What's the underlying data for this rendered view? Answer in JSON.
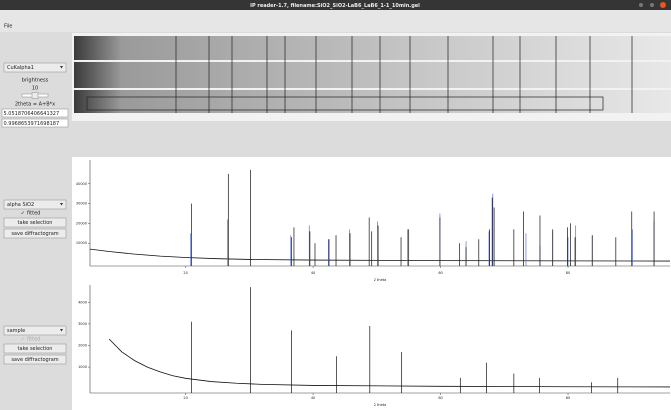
{
  "window": {
    "title": "IP reader-1.7, filename:SiO2_SiO2-LaB6_LaB6_1-1_10min.gel"
  },
  "menu": [
    "File"
  ],
  "image_panel": {
    "source": "CuKalpha1",
    "brightness_label": "brightness",
    "brightness": 10,
    "formula": "2theta = A+B*x",
    "param_a": "5.0518706406641327",
    "param_b": "0.9968653971698187"
  },
  "controls": [
    {
      "selector": "alpha SiO2",
      "check_label": "fitted",
      "checked": true,
      "enabled": true,
      "buttons": [
        "take selection",
        "save diffractogram"
      ]
    },
    {
      "selector": "sample",
      "check_label": "fitted",
      "checked": true,
      "enabled": false,
      "buttons": [
        "take selection",
        "save diffractogram"
      ]
    }
  ],
  "chart_data": [
    {
      "type": "line",
      "xlabel": "2 theta",
      "xlim": [
        5,
        96
      ],
      "ylim": [
        -1500,
        52000
      ],
      "xticks": [
        20,
        40,
        60,
        80
      ],
      "yticks": [
        10000,
        20000,
        30000,
        40000
      ],
      "series": [
        {
          "style": "line",
          "color": "#111111",
          "x": [
            5,
            8,
            12,
            16,
            20,
            25,
            30,
            40,
            60,
            80,
            96
          ],
          "values": [
            7000,
            5800,
            4500,
            3500,
            2800,
            2200,
            1800,
            1500,
            1200,
            1100,
            1000
          ]
        },
        {
          "style": "spikes",
          "color": "#5b6fd0",
          "x": [
            20.8,
            26.6,
            36.5,
            39.4,
            42.4,
            45.7,
            50.1,
            54.8,
            59.9,
            64.0,
            67.6,
            68.2,
            73.4,
            75.6,
            77.6,
            80.0,
            81.2,
            83.8,
            90.1,
            93.5
          ],
          "values": [
            15000,
            22000,
            14000,
            19000,
            12000,
            17000,
            21000,
            17000,
            25000,
            11000,
            16000,
            35000,
            15000,
            9000,
            16000,
            13000,
            19000,
            14000,
            17000,
            21000
          ]
        },
        {
          "style": "spikes",
          "color": "#111111",
          "x": [
            20.9,
            26.7,
            30.2,
            36.6,
            37.0,
            39.5,
            40.3,
            42.5,
            43.6,
            45.8,
            48.8,
            49.2,
            50.2,
            53.8,
            55.0,
            59.9,
            63.0,
            64.0,
            66.0,
            67.7,
            68.1,
            68.4,
            71.5,
            73.0,
            75.6,
            77.6,
            79.9,
            80.4,
            81.1,
            83.8,
            87.5,
            90.0,
            93.5
          ],
          "values": [
            30000,
            45000,
            47000,
            13000,
            18000,
            16000,
            10000,
            12000,
            14000,
            15000,
            23000,
            16000,
            19000,
            13000,
            17000,
            23000,
            10000,
            8000,
            12000,
            17000,
            33000,
            28000,
            17000,
            26000,
            24000,
            17000,
            18000,
            20000,
            13000,
            14000,
            13000,
            26000,
            26000
          ]
        }
      ]
    },
    {
      "type": "line",
      "xlabel": "2 theta",
      "xlim": [
        5,
        96
      ],
      "ylim": [
        -200,
        4800
      ],
      "xticks": [
        20,
        40,
        60,
        80
      ],
      "yticks": [
        1000,
        2000,
        3000,
        4000
      ],
      "series": [
        {
          "style": "line",
          "color": "#111111",
          "x": [
            8,
            9,
            10,
            12,
            14,
            16,
            18,
            20,
            24,
            28,
            32,
            40,
            60,
            80,
            96
          ],
          "values": [
            2300,
            2000,
            1700,
            1300,
            1000,
            780,
            600,
            480,
            330,
            250,
            200,
            150,
            110,
            90,
            80
          ]
        },
        {
          "style": "spikes",
          "color": "#111111",
          "x": [
            20.9,
            30.2,
            36.6,
            43.7,
            48.9,
            53.9,
            63.1,
            67.2,
            71.5,
            75.5,
            83.7,
            87.8
          ],
          "values": [
            3100,
            4700,
            2700,
            1500,
            2900,
            1700,
            500,
            1200,
            700,
            500,
            300,
            500
          ]
        }
      ]
    }
  ]
}
